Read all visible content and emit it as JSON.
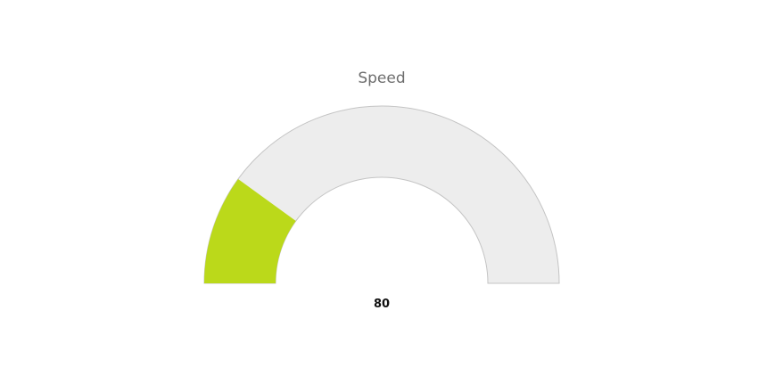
{
  "chart_data": {
    "type": "gauge",
    "title": "Speed",
    "value": 80,
    "value_label": "80",
    "min": 0,
    "max": 400,
    "colors": {
      "fill": "#bbd91a",
      "track": "#ededed",
      "track_border": "#c4c4c4"
    }
  }
}
